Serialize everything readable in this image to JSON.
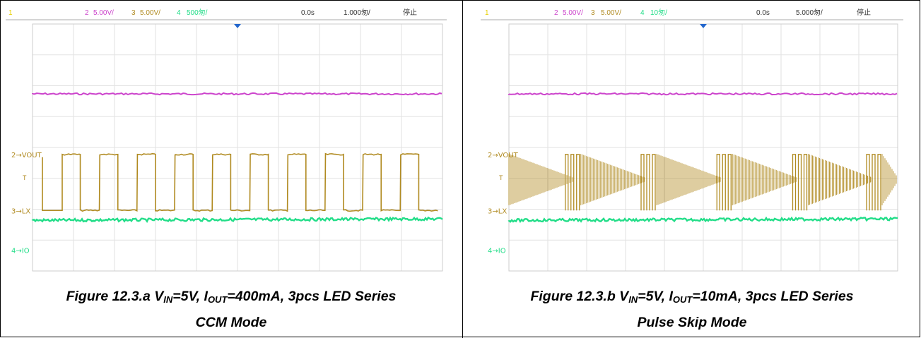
{
  "figures": [
    {
      "id": "a",
      "header": {
        "ch1": "1",
        "ch2": "2",
        "ch2_scale": "5.00V/",
        "ch3": "3",
        "ch3_scale": "5.00V/",
        "ch4": "4",
        "ch4_scale": "500匆/",
        "trigger_pos": "0.0s",
        "timebase": "1.000匆/",
        "status": "停止"
      },
      "labels": {
        "vout": "VOUT",
        "lx": "LX",
        "io": "IO",
        "ch2": "2",
        "ch3": "3",
        "ch4": "4",
        "trig": "T"
      },
      "caption": {
        "prefix": "Figure 12.3.a V",
        "vin_sub": "IN",
        "mid": "=5V, I",
        "iout_sub": "OUT",
        "suffix": "=400mA, 3pcs LED Series",
        "line2": "CCM Mode"
      }
    },
    {
      "id": "b",
      "header": {
        "ch1": "1",
        "ch2": "2",
        "ch2_scale": "5.00V/",
        "ch3": "3",
        "ch3_scale": "5.00V/",
        "ch4": "4",
        "ch4_scale": "10匆/",
        "trigger_pos": "0.0s",
        "timebase": "5.000匆/",
        "status": "停止"
      },
      "labels": {
        "vout": "VOUT",
        "lx": "LX",
        "io": "IO",
        "ch2": "2",
        "ch3": "3",
        "ch4": "4",
        "trig": "T"
      },
      "caption": {
        "prefix": "Figure 12.3.b V",
        "vin_sub": "IN",
        "mid": "=5V, I",
        "iout_sub": "OUT",
        "suffix": "=10mA, 3pcs LED Series",
        "line2": "Pulse Skip Mode"
      }
    }
  ],
  "colors": {
    "ch1": "#e8d000",
    "ch2": "#cc44cc",
    "ch3": "#b08a20",
    "ch4": "#22dd88",
    "trigger": "#2266cc",
    "grid": "#e2e2e2"
  }
}
